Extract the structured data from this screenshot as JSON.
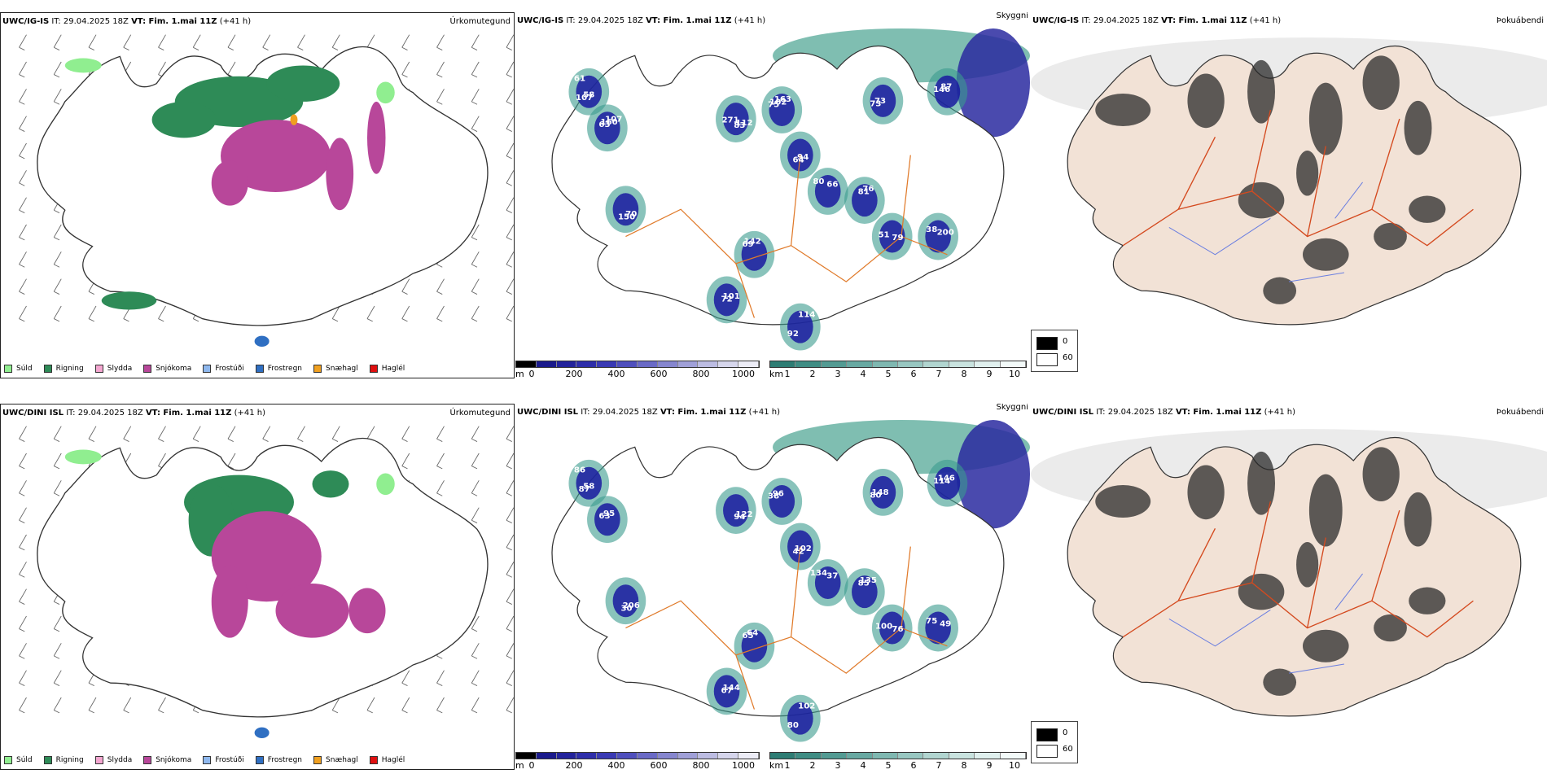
{
  "rows": [
    {
      "model": "UWC/IG-IS",
      "it": "IT: 29.04.2025 18Z",
      "vt": "VT: Fim. 1.mai 11Z",
      "lead": "(+41 h)",
      "p2_labels": [
        "61",
        "63",
        "83",
        "75",
        "64",
        "66",
        "73",
        "81",
        "79",
        "69",
        "72",
        "114",
        "146",
        "150",
        "200",
        "107",
        "160",
        "112",
        "102",
        "94",
        "80",
        "73",
        "76",
        "51",
        "142",
        "101",
        "92",
        "87",
        "70",
        "38",
        "58",
        "107",
        "271",
        "163"
      ]
    },
    {
      "model": "UWC/DINI ISL",
      "it": "IT: 29.04.2025 18Z",
      "vt": "VT: Fim. 1.mai 11Z",
      "lead": "(+41 h)",
      "p2_labels": [
        "86",
        "63",
        "94",
        "38",
        "42",
        "37",
        "80",
        "85",
        "76",
        "65",
        "67",
        "102",
        "114",
        "30",
        "49",
        "87",
        "95",
        "122",
        "96",
        "102",
        "134",
        "148",
        "135",
        "100",
        "64",
        "144",
        "80",
        "146",
        "206",
        "75",
        "58"
      ]
    }
  ],
  "panel_labels": {
    "precip": "Úrkomutegund",
    "cloud": "Skyggni",
    "fog": "Þokuábendi"
  },
  "legend": [
    {
      "label": "Súld",
      "color": "#90ee90"
    },
    {
      "label": "Rigning",
      "color": "#2e8b57"
    },
    {
      "label": "Slydda",
      "color": "#f4a6d0"
    },
    {
      "label": "Snjókoma",
      "color": "#b8479a"
    },
    {
      "label": "Frostúði",
      "color": "#8fb8ee"
    },
    {
      "label": "Frostregn",
      "color": "#2f6fc2"
    },
    {
      "label": "Snæhagl",
      "color": "#f0a020"
    },
    {
      "label": "Haglél",
      "color": "#e01010"
    }
  ],
  "scale_m": {
    "unit": "m",
    "ticks": [
      "0",
      "200",
      "400",
      "600",
      "800",
      "1000"
    ]
  },
  "scale_km": {
    "unit": "km",
    "ticks": [
      "1",
      "2",
      "3",
      "4",
      "5",
      "6",
      "7",
      "8",
      "9",
      "10"
    ]
  },
  "shade": {
    "low": "0",
    "high": "60"
  }
}
